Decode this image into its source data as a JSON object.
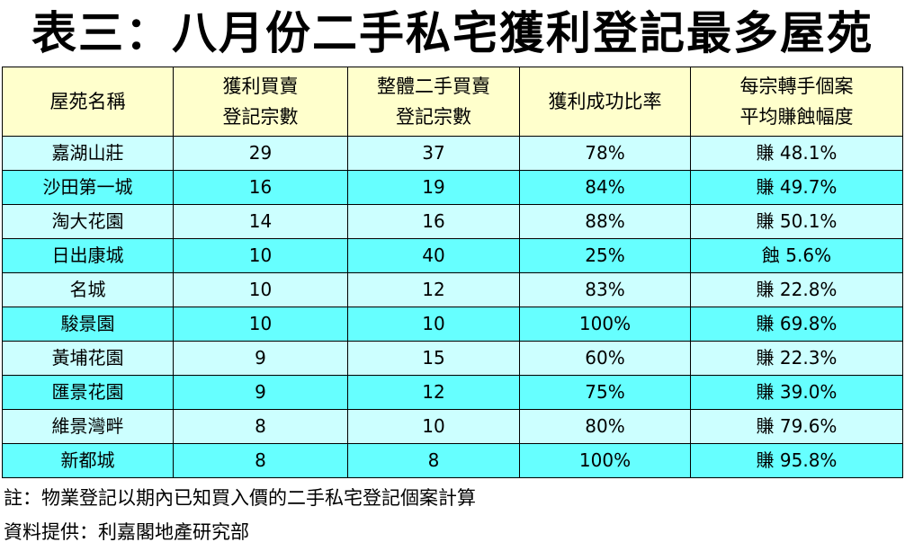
{
  "title": "表三：八月份二手私宅獲利登記最多屋苑",
  "table": {
    "headers": [
      {
        "line1": "屋苑名稱",
        "line2": ""
      },
      {
        "line1": "獲利買賣",
        "line2": "登記宗數"
      },
      {
        "line1": "整體二手買賣",
        "line2": "登記宗數"
      },
      {
        "line1": "獲利成功比率",
        "line2": ""
      },
      {
        "line1": "每宗轉手個案",
        "line2": "平均賺蝕幅度"
      }
    ],
    "rows": [
      [
        "嘉湖山莊",
        "29",
        "37",
        "78%",
        "賺 48.1%"
      ],
      [
        "沙田第一城",
        "16",
        "19",
        "84%",
        "賺 49.7%"
      ],
      [
        "淘大花園",
        "14",
        "16",
        "88%",
        "賺 50.1%"
      ],
      [
        "日出康城",
        "10",
        "40",
        "25%",
        "蝕 5.6%"
      ],
      [
        "名城",
        "10",
        "12",
        "83%",
        "賺 22.8%"
      ],
      [
        "駿景園",
        "10",
        "10",
        "100%",
        "賺 69.8%"
      ],
      [
        "黃埔花園",
        "9",
        "15",
        "60%",
        "賺 22.3%"
      ],
      [
        "匯景花園",
        "9",
        "12",
        "75%",
        "賺 39.0%"
      ],
      [
        "維景灣畔",
        "8",
        "10",
        "80%",
        "賺 79.6%"
      ],
      [
        "新都城",
        "8",
        "8",
        "100%",
        "賺 95.8%"
      ]
    ]
  },
  "note": "註：物業登記以期內已知買入價的二手私宅登記個案計算",
  "source": "資料提供：利嘉閣地產研究部",
  "colors": {
    "header_bg": "#ffffcc",
    "row_light": "#ccffff",
    "row_dark": "#66ffff"
  }
}
